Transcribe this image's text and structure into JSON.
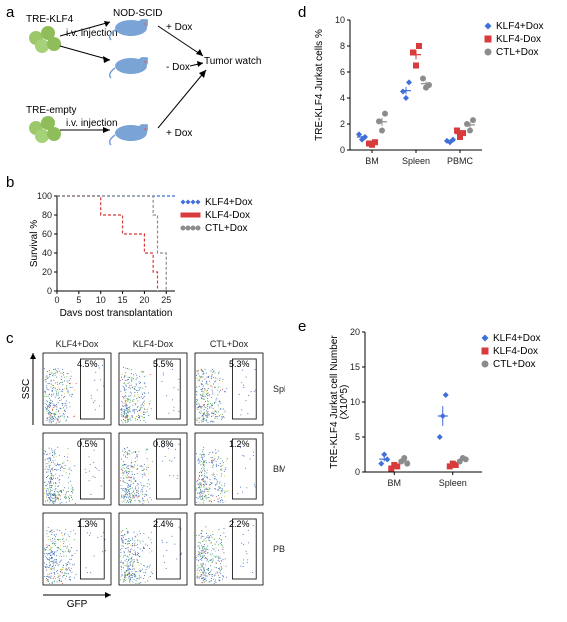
{
  "labels": {
    "a": "a",
    "b": "b",
    "c": "c",
    "d": "d",
    "e": "e"
  },
  "colors": {
    "klf4_dox_on": "#3f6fd8",
    "klf4_dox_off": "#d83b3b",
    "ctl_dox": "#8c8c8c",
    "green": "#9cc86a",
    "mouse": "#7aa3d6",
    "mouse_red": "#d86a6a",
    "axis": "#000000",
    "bg": "#ffffff"
  },
  "a": {
    "tre_klf4": "TRE-KLF4",
    "tre_empty": "TRE-empty",
    "iv": "i.v. injection",
    "nod": "NOD-SCID",
    "dox_p": "+ Dox",
    "dox_m": "- Dox",
    "watch": "Tumor watch"
  },
  "b": {
    "ylabel": "Survival %",
    "xlabel": "Days post transplantation",
    "xlim": [
      0,
      27
    ],
    "ylim": [
      0,
      100
    ],
    "xticks": [
      0,
      5,
      10,
      15,
      20,
      25
    ],
    "yticks": [
      0,
      20,
      40,
      60,
      80,
      100
    ],
    "legend": [
      "KLF4+Dox",
      "KLF4-Dox",
      "CTL+Dox"
    ],
    "series": {
      "KLF4+Dox": [
        [
          0,
          100
        ],
        [
          27,
          100
        ]
      ],
      "KLF4-Dox": [
        [
          0,
          100
        ],
        [
          10,
          100
        ],
        [
          10,
          80
        ],
        [
          15,
          80
        ],
        [
          15,
          60
        ],
        [
          20,
          60
        ],
        [
          20,
          40
        ],
        [
          22,
          40
        ],
        [
          22,
          20
        ],
        [
          23,
          20
        ],
        [
          23,
          0
        ]
      ],
      "CTL+Dox": [
        [
          0,
          100
        ],
        [
          22,
          100
        ],
        [
          22,
          80
        ],
        [
          23,
          80
        ],
        [
          23,
          40
        ],
        [
          25,
          40
        ],
        [
          25,
          0
        ]
      ]
    },
    "jitter": {
      "KLF4+Dox": [
        [
          23.5,
          105
        ],
        [
          24.5,
          103
        ],
        [
          25.5,
          106
        ],
        [
          26.5,
          104
        ]
      ],
      "KLF4-Dox": [
        [
          23,
          73
        ],
        [
          24,
          70
        ],
        [
          25,
          71
        ],
        [
          26,
          68
        ]
      ],
      "CTL+Dox": [
        [
          23,
          47
        ],
        [
          24,
          46
        ],
        [
          25,
          48
        ],
        [
          26,
          45
        ]
      ]
    }
  },
  "c": {
    "cols": [
      "KLF4+Dox",
      "KLF4-Dox",
      "CTL+Dox"
    ],
    "rows": [
      "Spleen",
      "BM",
      "PBMC"
    ],
    "xlabel": "GFP",
    "ylabel": "SSC",
    "pct": [
      [
        "4.5%",
        "5.5%",
        "5.3%"
      ],
      [
        "0.5%",
        "0.8%",
        "1.2%"
      ],
      [
        "1.3%",
        "2.4%",
        "2.2%"
      ]
    ]
  },
  "d": {
    "ylabel": "TRE-KLF4 Jurkat cells %",
    "xcats": [
      "BM",
      "Spleen",
      "PBMC"
    ],
    "ylim": [
      0,
      10
    ],
    "yticks": [
      0,
      2,
      4,
      6,
      8,
      10
    ],
    "legend": [
      "KLF4+Dox",
      "KLF4-Dox",
      "CTL+Dox"
    ],
    "data": {
      "BM": {
        "KLF4+Dox": [
          1.2,
          0.8,
          1.0
        ],
        "KLF4-Dox": [
          0.5,
          0.4,
          0.6
        ],
        "CTL+Dox": [
          2.2,
          1.5,
          2.8
        ]
      },
      "Spleen": {
        "KLF4+Dox": [
          4.5,
          4.0,
          5.2
        ],
        "KLF4-Dox": [
          7.5,
          6.5,
          8.0
        ],
        "CTL+Dox": [
          5.5,
          4.8,
          5.0
        ]
      },
      "PBMC": {
        "KLF4+Dox": [
          0.7,
          0.6,
          0.8
        ],
        "KLF4-Dox": [
          1.5,
          1.0,
          1.3
        ],
        "CTL+Dox": [
          2.0,
          1.5,
          2.3
        ]
      }
    }
  },
  "e": {
    "ylabel": "TRE-KLF4 Jurkat cell Number\n(X10^5)",
    "xcats": [
      "BM",
      "Spleen"
    ],
    "ylim": [
      0,
      20
    ],
    "yticks": [
      0,
      5,
      10,
      15,
      20
    ],
    "legend": [
      "KLF4+Dox",
      "KLF4-Dox",
      "CTL+Dox"
    ],
    "data": {
      "BM": {
        "KLF4+Dox": [
          1.2,
          2.5,
          1.8
        ],
        "KLF4-Dox": [
          0.5,
          1.0,
          0.8
        ],
        "CTL+Dox": [
          1.5,
          2.0,
          1.2
        ]
      },
      "Spleen": {
        "KLF4+Dox": [
          5.0,
          8.0,
          11.0
        ],
        "KLF4-Dox": [
          0.8,
          1.2,
          1.0
        ],
        "CTL+Dox": [
          1.5,
          2.0,
          1.8
        ]
      }
    }
  }
}
